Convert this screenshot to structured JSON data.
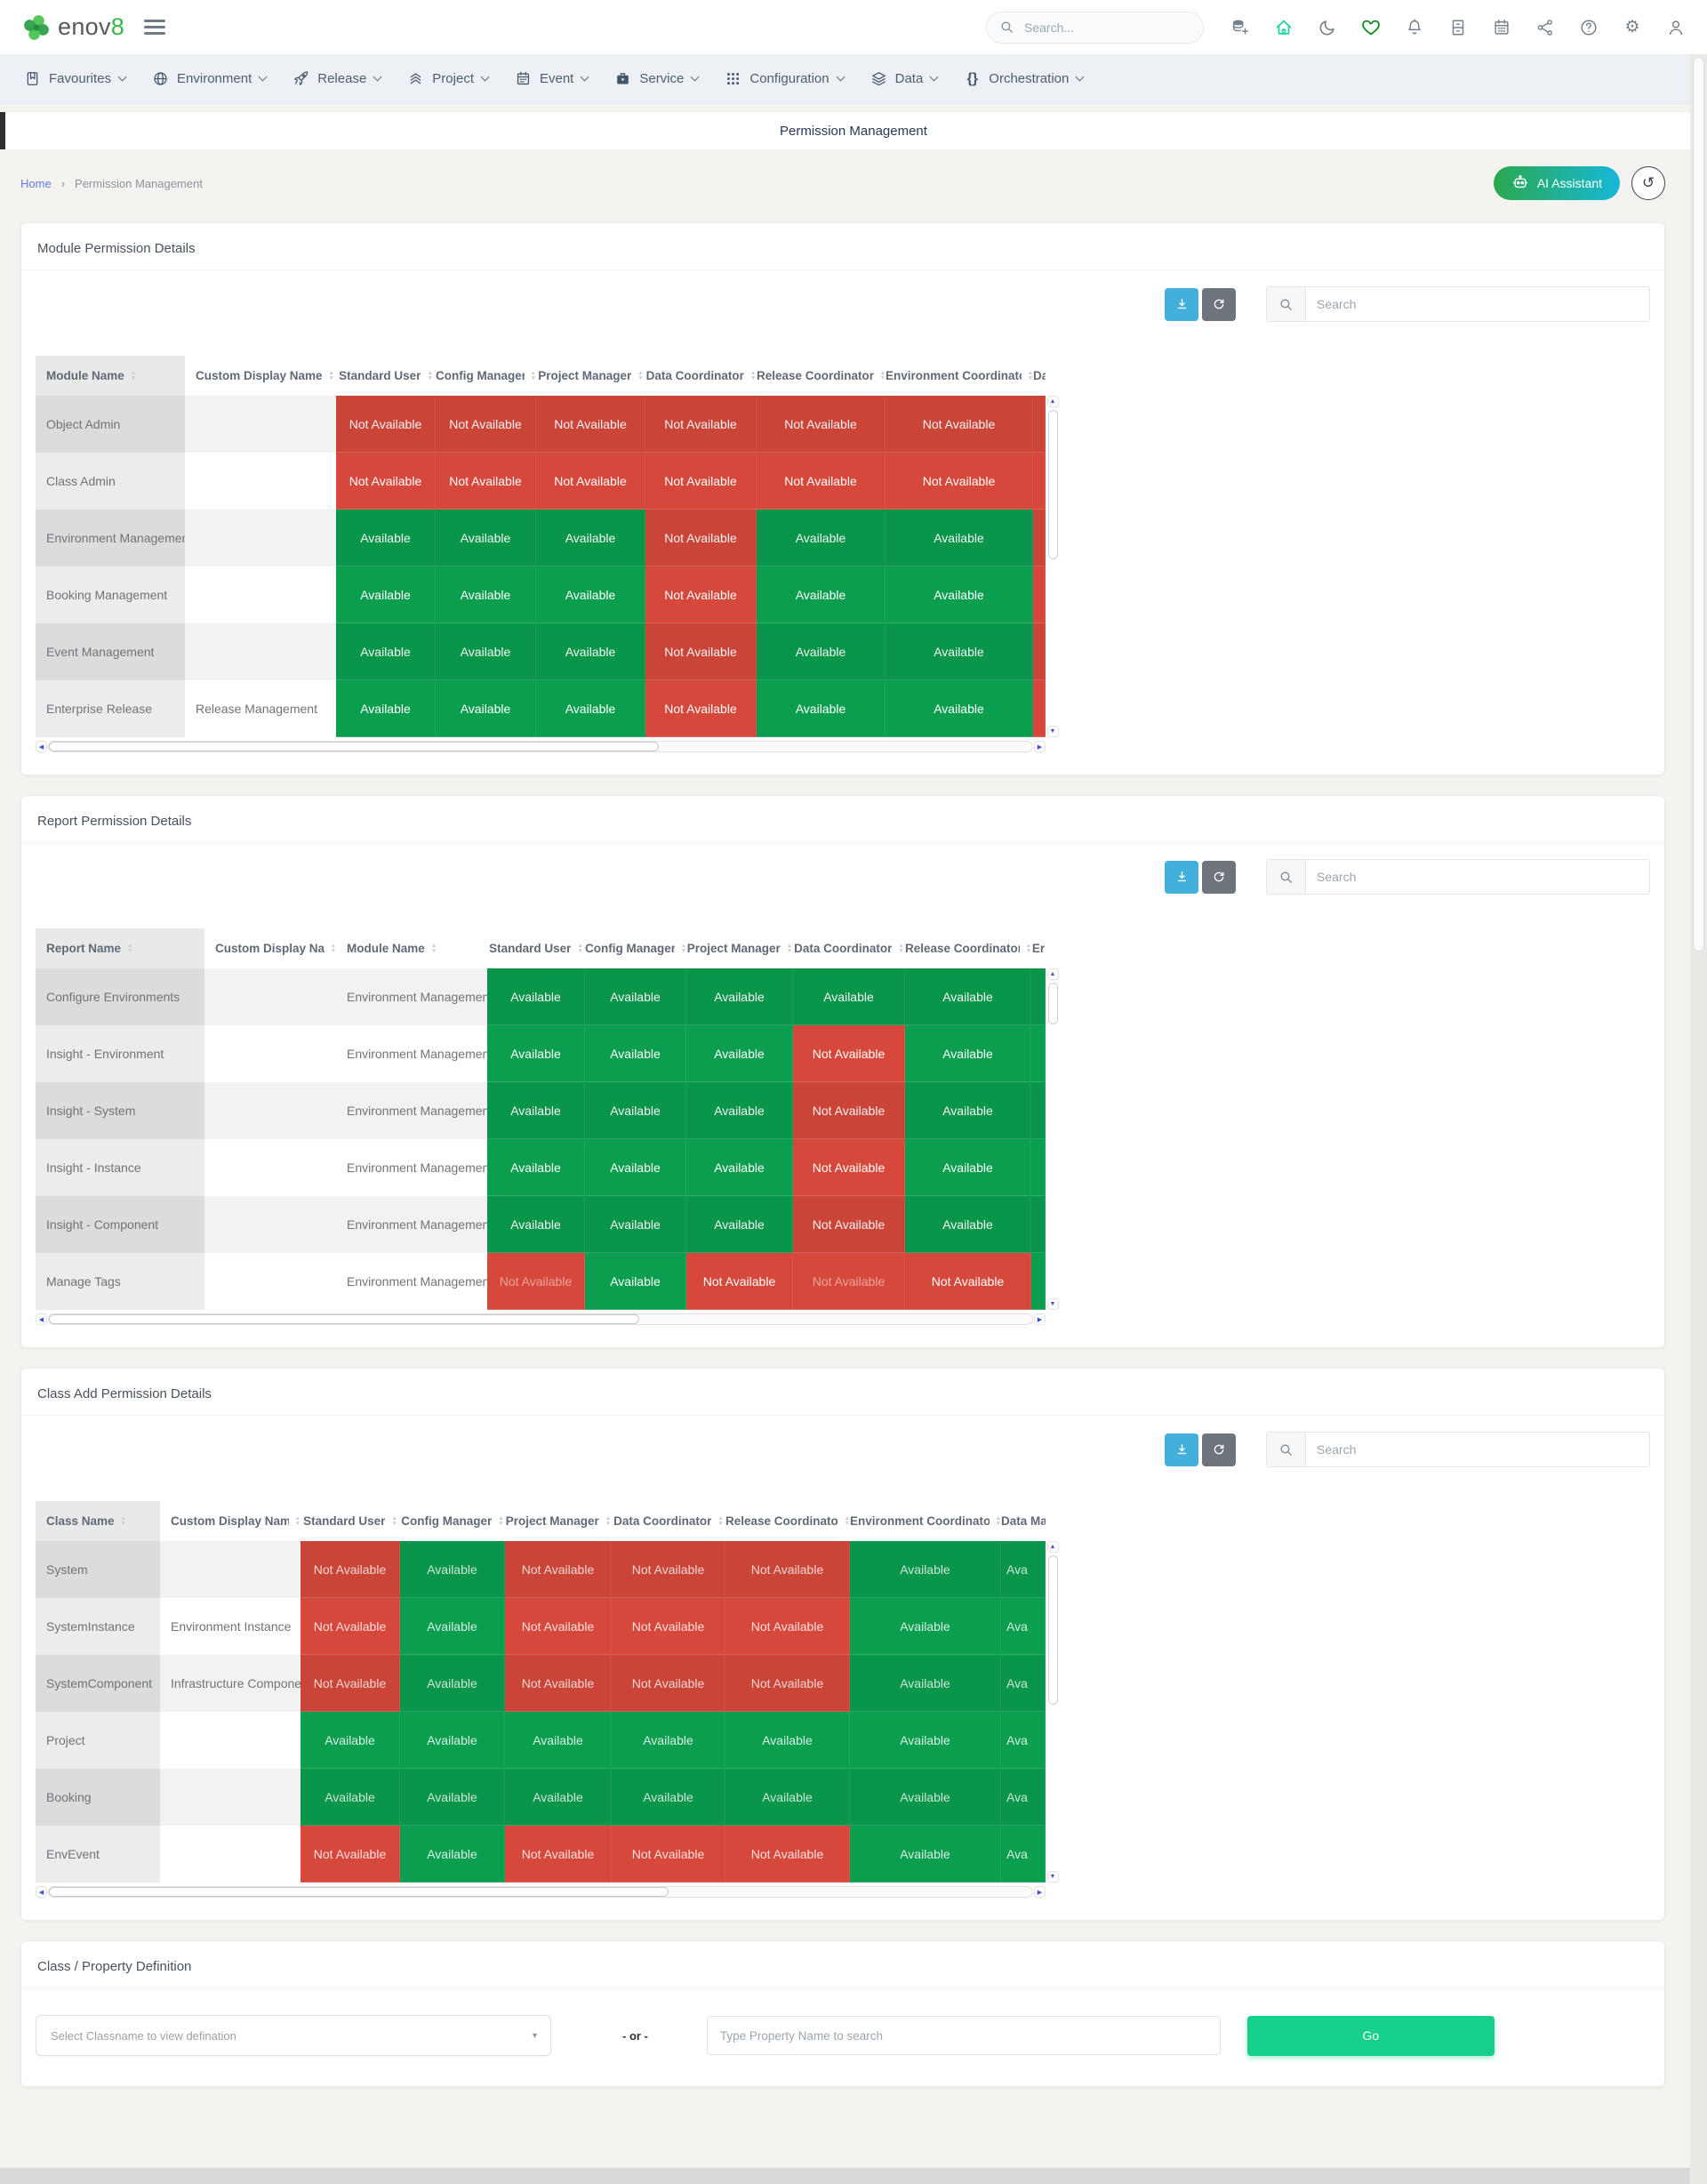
{
  "header": {
    "logo": {
      "text": "enov",
      "accent": "8"
    },
    "search_placeholder": "Search...",
    "icons": [
      {
        "name": "database-add",
        "icon": "dbadd",
        "tint": "#778089"
      },
      {
        "name": "home",
        "icon": "home",
        "tint": "#1ed1a1"
      },
      {
        "name": "moon",
        "icon": "moon",
        "tint": "#778089"
      },
      {
        "name": "heart",
        "icon": "heart",
        "tint": "#0b8a1e"
      },
      {
        "name": "bell",
        "icon": "bell",
        "tint": "#778089"
      },
      {
        "name": "archive",
        "icon": "archive",
        "tint": "#778089"
      },
      {
        "name": "calendar",
        "icon": "calendar",
        "tint": "#778089"
      },
      {
        "name": "share",
        "icon": "share",
        "tint": "#778089"
      },
      {
        "name": "help",
        "icon": "help",
        "tint": "#778089"
      },
      {
        "name": "settings",
        "icon": "gear",
        "tint": "#778089"
      },
      {
        "name": "user",
        "icon": "user",
        "tint": "#778089"
      }
    ]
  },
  "nav": {
    "items": [
      {
        "label": "Favourites",
        "icon": "book"
      },
      {
        "label": "Environment",
        "icon": "globe"
      },
      {
        "label": "Release",
        "icon": "rocket"
      },
      {
        "label": "Project",
        "icon": "chevrons"
      },
      {
        "label": "Event",
        "icon": "calendarnav"
      },
      {
        "label": "Service",
        "icon": "briefcase"
      },
      {
        "label": "Configuration",
        "icon": "grid"
      },
      {
        "label": "Data",
        "icon": "stack"
      },
      {
        "label": "Orchestration",
        "icon": "braces"
      }
    ]
  },
  "title_bar": {
    "title": "Permission Management"
  },
  "breadcrumb": {
    "home": "Home",
    "separator": "›",
    "current": "Permission Management"
  },
  "actions": {
    "ai_assistant": "AI Assistant"
  },
  "toolbar": {
    "search_placeholder": "Search"
  },
  "status_labels": {
    "A": "Available",
    "N": "Not Available"
  },
  "colors": {
    "available": "#0b9e4e",
    "not_available": "#d5483b"
  },
  "tables": [
    {
      "id": "module",
      "title": "Module Permission Details",
      "lead_columns": [
        "Module Name",
        "Custom Display Name"
      ],
      "status_columns": [
        "Standard User",
        "Config Manager",
        "Project Manager",
        "Data Coordinator",
        "Release Coordinator",
        "Environment Coordinator"
      ],
      "partial_column": {
        "label": "Da",
        "cell_text": ""
      },
      "rows": [
        {
          "lead": [
            "Object Admin",
            ""
          ],
          "status": [
            "N",
            "N",
            "N",
            "N",
            "N",
            "N"
          ],
          "partial": "N"
        },
        {
          "lead": [
            "Class Admin",
            ""
          ],
          "status": [
            "N",
            "N",
            "N",
            "N",
            "N",
            "N"
          ],
          "partial": "N"
        },
        {
          "lead": [
            "Environment Management",
            ""
          ],
          "status": [
            "A",
            "A",
            "A",
            "N",
            "A",
            "A"
          ],
          "partial": "N"
        },
        {
          "lead": [
            "Booking Management",
            ""
          ],
          "status": [
            "A",
            "A",
            "A",
            "N",
            "A",
            "A"
          ],
          "partial": "N"
        },
        {
          "lead": [
            "Event Management",
            ""
          ],
          "status": [
            "A",
            "A",
            "A",
            "N",
            "A",
            "A"
          ],
          "partial": "N"
        },
        {
          "lead": [
            "Enterprise Release",
            "Release Management"
          ],
          "status": [
            "A",
            "A",
            "A",
            "N",
            "A",
            "A"
          ],
          "partial": "N"
        }
      ]
    },
    {
      "id": "report",
      "title": "Report Permission Details",
      "lead_columns": [
        "Report Name",
        "Custom Display Name",
        "Module Name"
      ],
      "status_columns": [
        "Standard User",
        "Config Manager",
        "Project Manager",
        "Data Coordinator",
        "Release Coordinator"
      ],
      "partial_column": {
        "label": "Er",
        "cell_text": ""
      },
      "rows": [
        {
          "lead": [
            "Configure Environments",
            "",
            "Environment Management"
          ],
          "status": [
            "A",
            "A",
            "A",
            "A",
            "A"
          ],
          "partial": "A"
        },
        {
          "lead": [
            "Insight - Environment",
            "",
            "Environment Management"
          ],
          "status": [
            "A",
            "A",
            "A",
            "N",
            "A"
          ],
          "partial": "A"
        },
        {
          "lead": [
            "Insight - System",
            "",
            "Environment Management"
          ],
          "status": [
            "A",
            "A",
            "A",
            "N",
            "A"
          ],
          "partial": "A"
        },
        {
          "lead": [
            "Insight - Instance",
            "",
            "Environment Management"
          ],
          "status": [
            "A",
            "A",
            "A",
            "N",
            "A"
          ],
          "partial": "A"
        },
        {
          "lead": [
            "Insight - Component",
            "",
            "Environment Management"
          ],
          "status": [
            "A",
            "A",
            "A",
            "N",
            "A"
          ],
          "partial": "A"
        },
        {
          "lead": [
            "Manage Tags",
            "",
            "Environment Management"
          ],
          "status": [
            "N",
            "A",
            "N",
            "N",
            "N"
          ],
          "partial": "A",
          "dim": [
            0,
            3
          ]
        }
      ]
    },
    {
      "id": "class",
      "title": "Class Add Permission Details",
      "dim_text": true,
      "lead_columns": [
        "Class Name",
        "Custom Display Name"
      ],
      "status_columns": [
        "Standard User",
        "Config Manager",
        "Project Manager",
        "Data Coordinator",
        "Release Coordinator",
        "Environment Coordinator"
      ],
      "partial_column": {
        "label": "Data Mar",
        "cell_text": "Ava"
      },
      "rows": [
        {
          "lead": [
            "System",
            ""
          ],
          "status": [
            "N",
            "A",
            "N",
            "N",
            "N",
            "A"
          ],
          "partial": "A"
        },
        {
          "lead": [
            "SystemInstance",
            "Environment Instance"
          ],
          "status": [
            "N",
            "A",
            "N",
            "N",
            "N",
            "A"
          ],
          "partial": "A"
        },
        {
          "lead": [
            "SystemComponent",
            "Infrastructure Component"
          ],
          "status": [
            "N",
            "A",
            "N",
            "N",
            "N",
            "A"
          ],
          "partial": "A"
        },
        {
          "lead": [
            "Project",
            ""
          ],
          "status": [
            "A",
            "A",
            "A",
            "A",
            "A",
            "A"
          ],
          "partial": "A"
        },
        {
          "lead": [
            "Booking",
            ""
          ],
          "status": [
            "A",
            "A",
            "A",
            "A",
            "A",
            "A"
          ],
          "partial": "A"
        },
        {
          "lead": [
            "EnvEvent",
            ""
          ],
          "status": [
            "N",
            "A",
            "N",
            "N",
            "N",
            "A"
          ],
          "partial": "A"
        }
      ]
    }
  ],
  "definition": {
    "title": "Class / Property Definition",
    "select_placeholder": "Select Classname to view defination",
    "or_text": "- or -",
    "input_placeholder": "Type Property Name to search",
    "go_label": "Go"
  }
}
